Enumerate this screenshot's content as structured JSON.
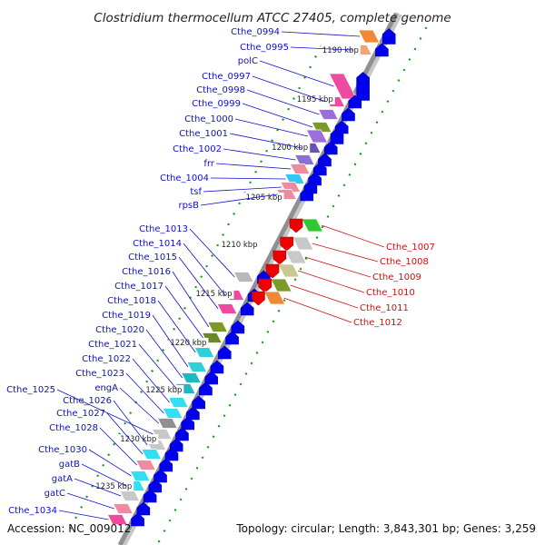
{
  "title": "Clostridium thermocellum ATCC 27405, complete genome",
  "footer": {
    "accession": "Accession: NC_009012",
    "summary": "Topology: circular; Length: 3,843,301 bp; Genes: 3,259"
  },
  "colors": {
    "forward_label": "#1010cc",
    "reverse_label": "#cc1010",
    "cds_arrow": "#0000ee",
    "backbone": "#909090",
    "gc_dots": "#1a9a1a"
  },
  "kbp_marks": [
    "1190 kbp",
    "1195 kbp",
    "1200 kbp",
    "1205 kbp",
    "1210 kbp",
    "1215 kbp",
    "1220 kbp",
    "1225 kbp",
    "1230 kbp",
    "1235 kbp"
  ],
  "forward_genes": [
    {
      "name": "Cthe_0994",
      "color": "#f08838"
    },
    {
      "name": "Cthe_0995",
      "color": "#f4a078"
    },
    {
      "name": "polC",
      "color": "#f04aa0"
    },
    {
      "name": "Cthe_0997",
      "color": "#f04aa0"
    },
    {
      "name": "Cthe_0998",
      "color": "#9a70d8"
    },
    {
      "name": "Cthe_0999",
      "color": "#7a9a2a"
    },
    {
      "name": "Cthe_1000",
      "color": "#9a70d8"
    },
    {
      "name": "Cthe_1001",
      "color": "#6a50b8"
    },
    {
      "name": "Cthe_1002",
      "color": "#8a70d0"
    },
    {
      "name": "frr",
      "color": "#f08aa0"
    },
    {
      "name": "Cthe_1004",
      "color": "#30c8f0"
    },
    {
      "name": "tsf",
      "color": "#f08aa0"
    },
    {
      "name": "rpsB",
      "color": "#f08aa0"
    },
    {
      "name": "Cthe_1013",
      "color": "#b8b8b8"
    },
    {
      "name": "Cthe_1014",
      "color": "#f04aa0"
    },
    {
      "name": "Cthe_1015",
      "color": "#f04aa0"
    },
    {
      "name": "Cthe_1016",
      "color": "#7a9a2a"
    },
    {
      "name": "Cthe_1017",
      "color": "#6a8a2a"
    },
    {
      "name": "Cthe_1018",
      "color": "#30d0d8"
    },
    {
      "name": "Cthe_1019",
      "color": "#30d0d8"
    },
    {
      "name": "Cthe_1020",
      "color": "#20b8c0"
    },
    {
      "name": "Cthe_1021",
      "color": "#20b8c0"
    },
    {
      "name": "Cthe_1022",
      "color": "#30e0f0"
    },
    {
      "name": "Cthe_1023",
      "color": "#30e0f0"
    },
    {
      "name": "engA",
      "color": "#909090"
    },
    {
      "name": "Cthe_1025",
      "color": "#c8c8c8"
    },
    {
      "name": "Cthe_1026",
      "color": "#c8c8c8"
    },
    {
      "name": "Cthe_1027",
      "color": "#30e0f0"
    },
    {
      "name": "Cthe_1028",
      "color": "#f08aa0"
    },
    {
      "name": "Cthe_1030",
      "color": "#30e0f0"
    },
    {
      "name": "gatB",
      "color": "#30e0f0"
    },
    {
      "name": "gatA",
      "color": "#c8c8c8"
    },
    {
      "name": "gatC",
      "color": "#f08aa0"
    },
    {
      "name": "Cthe_1034",
      "color": "#f04aa0"
    }
  ],
  "reverse_genes": [
    {
      "name": "Cthe_1007",
      "color": "#30c830"
    },
    {
      "name": "Cthe_1008",
      "color": "#c8c8c8"
    },
    {
      "name": "Cthe_1009",
      "color": "#c8c8c8"
    },
    {
      "name": "Cthe_1010",
      "color": "#c8c890"
    },
    {
      "name": "Cthe_1011",
      "color": "#7a9a2a"
    },
    {
      "name": "Cthe_1012",
      "color": "#f08838"
    }
  ]
}
